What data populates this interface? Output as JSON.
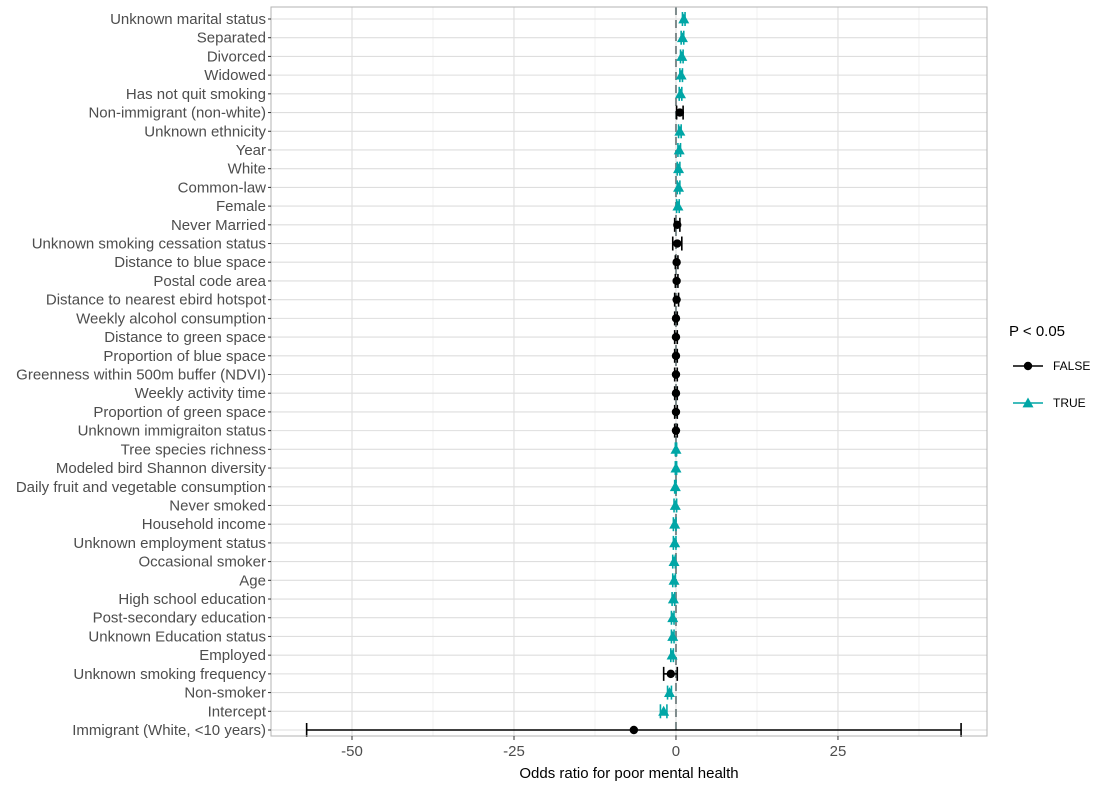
{
  "chart_data": {
    "type": "scatter",
    "subtype": "forest-plot",
    "title": "",
    "xlabel": "Odds ratio for poor mental health",
    "ylabel": "",
    "xlim": [
      -62.5,
      48
    ],
    "xticks": [
      -50,
      -25,
      0,
      25
    ],
    "xtick_labels": [
      "-50",
      "-25",
      "0",
      "25"
    ],
    "reference_line": 0,
    "grid": true,
    "legend": {
      "title": "P < 0.05",
      "position": "right",
      "entries": [
        {
          "label": "FALSE",
          "color": "#000000",
          "marker": "circle"
        },
        {
          "label": "TRUE",
          "color": "#00a6a6",
          "marker": "triangle"
        }
      ]
    },
    "colors": {
      "FALSE": "#000000",
      "TRUE": "#00a6a6",
      "reference_line": "#7f8c8d"
    },
    "points": [
      {
        "label": "Unknown marital status",
        "estimate": 1.2,
        "lower": 1.0,
        "upper": 1.4,
        "significant": "TRUE"
      },
      {
        "label": "Separated",
        "estimate": 1.0,
        "lower": 0.8,
        "upper": 1.2,
        "significant": "TRUE"
      },
      {
        "label": "Divorced",
        "estimate": 0.9,
        "lower": 0.7,
        "upper": 1.1,
        "significant": "TRUE"
      },
      {
        "label": "Widowed",
        "estimate": 0.8,
        "lower": 0.6,
        "upper": 1.0,
        "significant": "TRUE"
      },
      {
        "label": "Has not quit smoking",
        "estimate": 0.7,
        "lower": 0.5,
        "upper": 0.9,
        "significant": "TRUE"
      },
      {
        "label": "Non-immigrant (non-white)",
        "estimate": 0.6,
        "lower": 0.1,
        "upper": 1.1,
        "significant": "FALSE"
      },
      {
        "label": "Unknown ethnicity",
        "estimate": 0.6,
        "lower": 0.4,
        "upper": 0.8,
        "significant": "TRUE"
      },
      {
        "label": "Year",
        "estimate": 0.5,
        "lower": 0.3,
        "upper": 0.7,
        "significant": "TRUE"
      },
      {
        "label": "White",
        "estimate": 0.4,
        "lower": 0.2,
        "upper": 0.6,
        "significant": "TRUE"
      },
      {
        "label": "Common-law",
        "estimate": 0.4,
        "lower": 0.2,
        "upper": 0.6,
        "significant": "TRUE"
      },
      {
        "label": "Female",
        "estimate": 0.3,
        "lower": 0.1,
        "upper": 0.5,
        "significant": "TRUE"
      },
      {
        "label": "Never Married",
        "estimate": 0.2,
        "lower": -0.2,
        "upper": 0.6,
        "significant": "FALSE"
      },
      {
        "label": "Unknown smoking cessation status",
        "estimate": 0.2,
        "lower": -0.5,
        "upper": 0.9,
        "significant": "FALSE"
      },
      {
        "label": "Distance to blue space",
        "estimate": 0.1,
        "lower": -0.1,
        "upper": 0.3,
        "significant": "FALSE"
      },
      {
        "label": "Postal code area",
        "estimate": 0.1,
        "lower": -0.1,
        "upper": 0.3,
        "significant": "FALSE"
      },
      {
        "label": "Distance to nearest ebird hotspot",
        "estimate": 0.1,
        "lower": -0.2,
        "upper": 0.4,
        "significant": "FALSE"
      },
      {
        "label": "Weekly alcohol consumption",
        "estimate": 0.0,
        "lower": -0.2,
        "upper": 0.2,
        "significant": "FALSE"
      },
      {
        "label": "Distance to green space",
        "estimate": 0.0,
        "lower": -0.2,
        "upper": 0.2,
        "significant": "FALSE"
      },
      {
        "label": "Proportion of blue space",
        "estimate": 0.0,
        "lower": -0.2,
        "upper": 0.2,
        "significant": "FALSE"
      },
      {
        "label": "Greenness within 500m buffer (NDVI)",
        "estimate": 0.0,
        "lower": -0.2,
        "upper": 0.2,
        "significant": "FALSE"
      },
      {
        "label": "Weekly activity time",
        "estimate": 0.0,
        "lower": -0.2,
        "upper": 0.2,
        "significant": "FALSE"
      },
      {
        "label": "Proportion of green space",
        "estimate": 0.0,
        "lower": -0.2,
        "upper": 0.2,
        "significant": "FALSE"
      },
      {
        "label": "Unknown immigraiton status",
        "estimate": 0.0,
        "lower": -0.2,
        "upper": 0.2,
        "significant": "FALSE"
      },
      {
        "label": "Tree species richness",
        "estimate": 0.0,
        "lower": -0.1,
        "upper": 0.1,
        "significant": "TRUE"
      },
      {
        "label": "Modeled bird Shannon diversity",
        "estimate": 0.0,
        "lower": -0.1,
        "upper": 0.1,
        "significant": "TRUE"
      },
      {
        "label": "Daily fruit and vegetable consumption",
        "estimate": -0.1,
        "lower": -0.2,
        "upper": 0.0,
        "significant": "TRUE"
      },
      {
        "label": "Never smoked",
        "estimate": -0.1,
        "lower": -0.3,
        "upper": 0.1,
        "significant": "TRUE"
      },
      {
        "label": "Household income",
        "estimate": -0.2,
        "lower": -0.4,
        "upper": 0.0,
        "significant": "TRUE"
      },
      {
        "label": "Unknown employment status",
        "estimate": -0.2,
        "lower": -0.4,
        "upper": 0.0,
        "significant": "TRUE"
      },
      {
        "label": "Occasional smoker",
        "estimate": -0.3,
        "lower": -0.5,
        "upper": -0.1,
        "significant": "TRUE"
      },
      {
        "label": "Age",
        "estimate": -0.3,
        "lower": -0.5,
        "upper": -0.1,
        "significant": "TRUE"
      },
      {
        "label": "High school education",
        "estimate": -0.4,
        "lower": -0.6,
        "upper": -0.2,
        "significant": "TRUE"
      },
      {
        "label": "Post-secondary education",
        "estimate": -0.5,
        "lower": -0.7,
        "upper": -0.3,
        "significant": "TRUE"
      },
      {
        "label": "Unknown Education status",
        "estimate": -0.5,
        "lower": -0.7,
        "upper": -0.3,
        "significant": "TRUE"
      },
      {
        "label": "Employed",
        "estimate": -0.6,
        "lower": -0.8,
        "upper": -0.4,
        "significant": "TRUE"
      },
      {
        "label": "Unknown smoking frequency",
        "estimate": -0.8,
        "lower": -1.9,
        "upper": 0.2,
        "significant": "FALSE"
      },
      {
        "label": "Non-smoker",
        "estimate": -1.0,
        "lower": -1.3,
        "upper": -0.7,
        "significant": "TRUE"
      },
      {
        "label": "Intercept",
        "estimate": -1.9,
        "lower": -2.4,
        "upper": -1.4,
        "significant": "TRUE"
      },
      {
        "label": "Immigrant (White, <10 years)",
        "estimate": -6.5,
        "lower": -57.0,
        "upper": 44.0,
        "significant": "FALSE"
      }
    ]
  }
}
